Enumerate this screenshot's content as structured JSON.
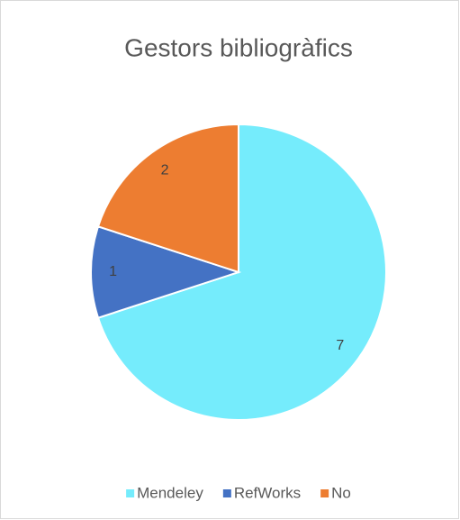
{
  "chart_data": {
    "type": "pie",
    "title": "Gestors bibliogràfics",
    "categories": [
      "Mendeley",
      "RefWorks",
      "No"
    ],
    "values": [
      7,
      1,
      2
    ],
    "colors": [
      "#75ECFC",
      "#4472C4",
      "#ED7D31"
    ],
    "legend": "bottom"
  }
}
